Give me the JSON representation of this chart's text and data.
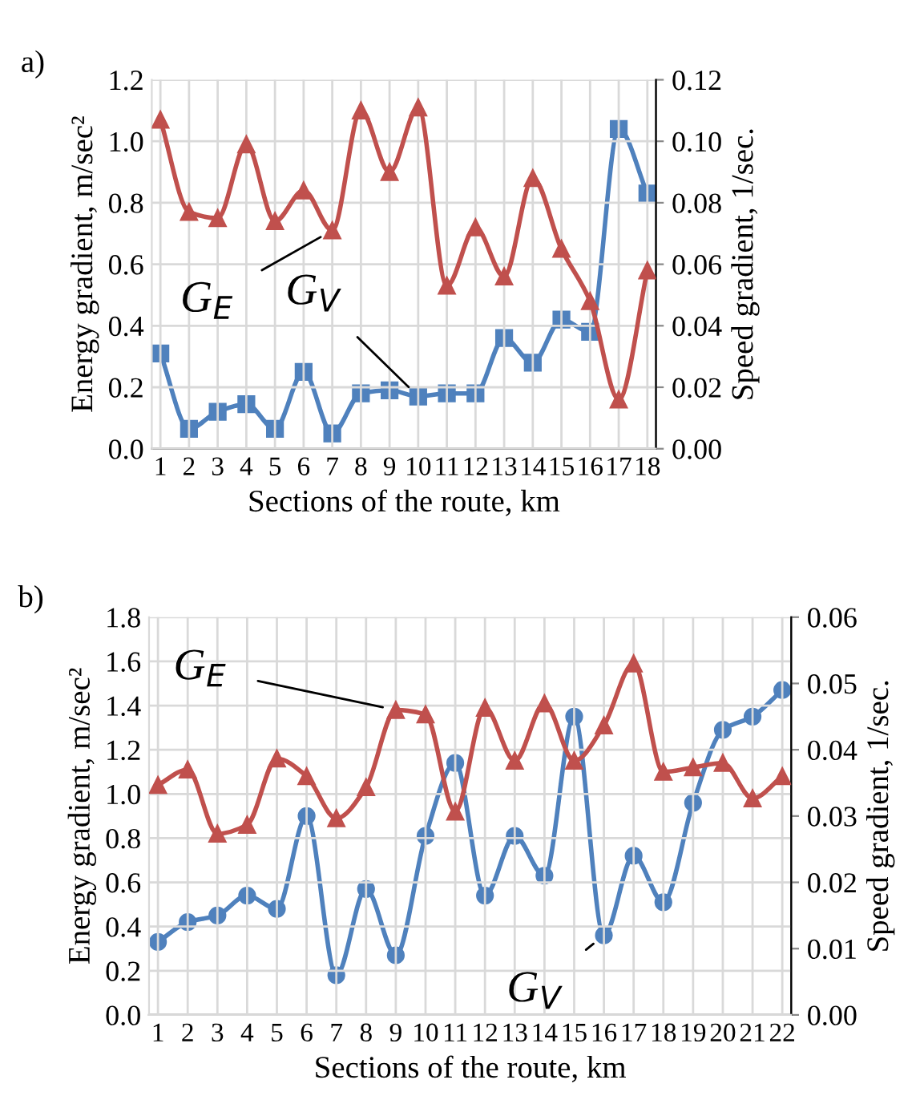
{
  "chart_data": [
    {
      "type": "line",
      "title": "a)",
      "xlabel": "Sections of the route, km",
      "ylabel": "Energy gradient, m/sec²",
      "y2label": "Speed gradient, 1/sec.",
      "categories": [
        "1",
        "2",
        "3",
        "4",
        "5",
        "6",
        "7",
        "8",
        "9",
        "10",
        "11",
        "12",
        "13",
        "14",
        "15",
        "16",
        "17",
        "18"
      ],
      "series": [
        {
          "color": "#c0504d",
          "marker": "triangle",
          "values": [
            1.07,
            0.77,
            0.75,
            0.99,
            0.74,
            0.84,
            0.71,
            1.1,
            0.9,
            1.11,
            0.53,
            0.72,
            0.56,
            0.88,
            0.65,
            0.48,
            0.16,
            0.58
          ]
        },
        {
          "color": "#4f81bd",
          "marker": "square",
          "axis": "y2",
          "values": [
            0.031,
            0.0065,
            0.012,
            0.0145,
            0.0065,
            0.025,
            0.005,
            0.018,
            0.019,
            0.017,
            0.018,
            0.018,
            0.036,
            0.028,
            0.042,
            0.038,
            0.104,
            0.083
          ]
        }
      ],
      "ylim": [
        0,
        1.2
      ],
      "yticks": [
        {
          "value": 0,
          "label": "0.0"
        },
        {
          "value": 0.2,
          "label": "0.2"
        },
        {
          "value": 0.4,
          "label": "0.4"
        },
        {
          "value": 0.6,
          "label": "0.6"
        },
        {
          "value": 0.8,
          "label": "0.8"
        },
        {
          "value": 1,
          "label": "1.0"
        },
        {
          "value": 1.2,
          "label": "1.2"
        }
      ],
      "y2lim": [
        0,
        0.12
      ],
      "y2ticks": [
        {
          "value": 0,
          "label": "0.00"
        },
        {
          "value": 0.02,
          "label": "0.02"
        },
        {
          "value": 0.04,
          "label": "0.04"
        },
        {
          "value": 0.06,
          "label": "0.06"
        },
        {
          "value": 0.08,
          "label": "0.08"
        },
        {
          "value": 0.1,
          "label": "0.10"
        },
        {
          "value": 0.12,
          "label": "0.12"
        }
      ],
      "grid": true,
      "legend": false,
      "annotations": [
        {
          "text": "G$_{E}$",
          "x": "7",
          "y": 0.71
        },
        {
          "text": "G$_{V}$",
          "x": "10",
          "y": 0.17
        }
      ]
    },
    {
      "type": "line",
      "title": "b)",
      "xlabel": "Sections of the route, km",
      "ylabel": "Energy gradient, m/sec²",
      "y2label": "Speed gradient, 1/sec.",
      "categories": [
        "1",
        "2",
        "3",
        "4",
        "5",
        "6",
        "7",
        "8",
        "9",
        "10",
        "11",
        "12",
        "13",
        "14",
        "15",
        "16",
        "17",
        "18",
        "19",
        "20",
        "21",
        "22"
      ],
      "series": [
        {
          "color": "#c0504d",
          "marker": "triangle",
          "values": [
            1.04,
            1.11,
            0.82,
            0.86,
            1.16,
            1.08,
            0.89,
            1.03,
            1.38,
            1.36,
            0.92,
            1.39,
            1.15,
            1.41,
            1.15,
            1.31,
            1.59,
            1.1,
            1.12,
            1.14,
            0.98,
            1.08
          ]
        },
        {
          "color": "#4f81bd",
          "marker": "circle",
          "axis": "y2",
          "values": [
            0.011,
            0.014,
            0.015,
            0.018,
            0.016,
            0.03,
            0.006,
            0.019,
            0.009,
            0.027,
            0.038,
            0.018,
            0.027,
            0.021,
            0.045,
            0.012,
            0.024,
            0.017,
            0.032,
            0.043,
            0.045,
            0.049
          ]
        }
      ],
      "ylim": [
        0,
        1.8
      ],
      "yticks": [
        {
          "value": 0,
          "label": "0.0"
        },
        {
          "value": 0.2,
          "label": "0.2"
        },
        {
          "value": 0.4,
          "label": "0.4"
        },
        {
          "value": 0.6,
          "label": "0.6"
        },
        {
          "value": 0.8,
          "label": "0.8"
        },
        {
          "value": 1,
          "label": "1.0"
        },
        {
          "value": 1.2,
          "label": "1.2"
        },
        {
          "value": 1.4,
          "label": "1.4"
        },
        {
          "value": 1.6,
          "label": "1.6"
        },
        {
          "value": 1.8,
          "label": "1.8"
        }
      ],
      "y2lim": [
        0,
        0.06
      ],
      "y2ticks": [
        {
          "value": 0,
          "label": "0.00"
        },
        {
          "value": 0.01,
          "label": "0.01"
        },
        {
          "value": 0.02,
          "label": "0.02"
        },
        {
          "value": 0.03,
          "label": "0.03"
        },
        {
          "value": 0.04,
          "label": "0.04"
        },
        {
          "value": 0.05,
          "label": "0.05"
        },
        {
          "value": 0.06,
          "label": "0.06"
        }
      ],
      "grid": true,
      "legend": false,
      "annotations": [
        {
          "text": "G$_{E}$",
          "x": "9",
          "y": 1.38
        },
        {
          "text": "G$_{V}$",
          "x": "16",
          "y": 0.36
        }
      ]
    }
  ]
}
